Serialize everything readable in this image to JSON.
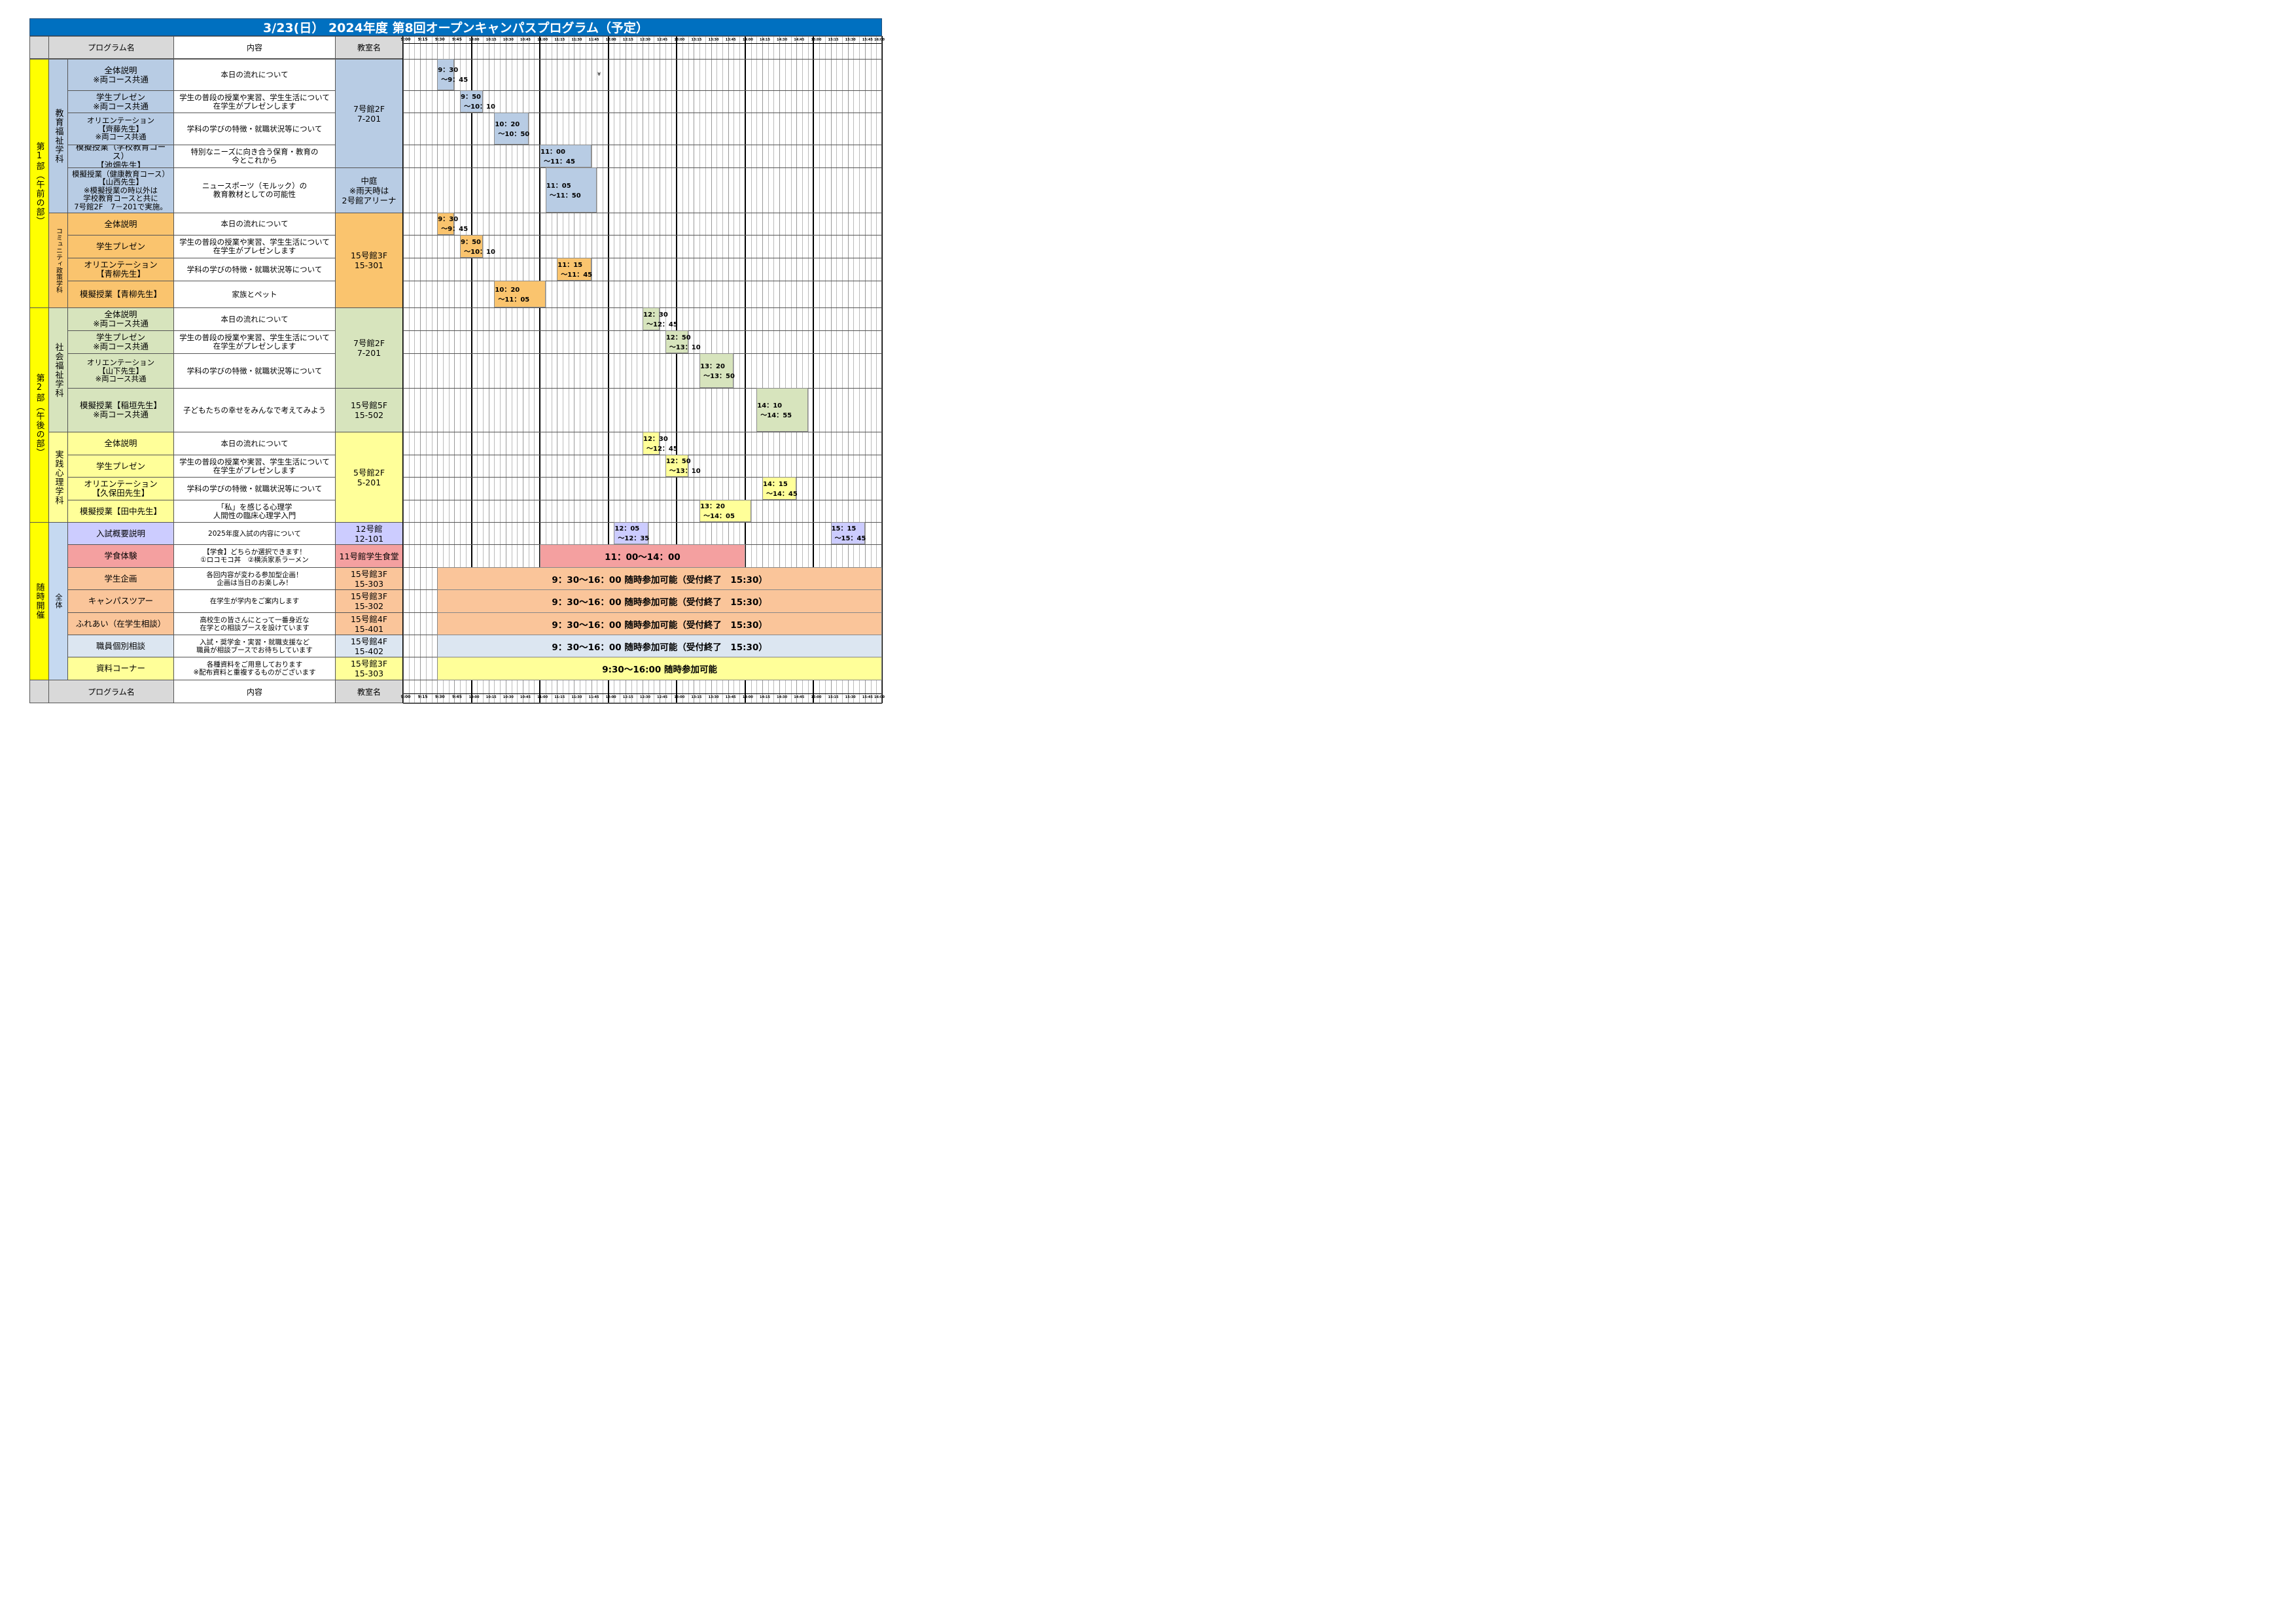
{
  "title": "3/23(日） 2024年度 第8回オープンキャンパスプログラム（予定）",
  "header": {
    "program": "プログラム名",
    "content": "内容",
    "room": "教室名"
  },
  "footer": {
    "program": "プログラム名",
    "content": "内容",
    "room": "教室名"
  },
  "time_ticks": [
    "9:00",
    "9:15",
    "9:30",
    "9:45",
    "10:00",
    "10:15",
    "10:30",
    "10:45",
    "11:00",
    "11:15",
    "11:30",
    "11:45",
    "12:00",
    "12:15",
    "12:30",
    "12:45",
    "13:00",
    "13:15",
    "13:30",
    "13:45",
    "14:00",
    "14:15",
    "14:30",
    "14:45",
    "15:00",
    "15:15",
    "15:30",
    "15:45",
    "16:00"
  ],
  "parts": [
    {
      "label": "第1部（午前の部）",
      "color": "#ffff00"
    },
    {
      "label": "第2部（午後の部）",
      "color": "#ffff00"
    },
    {
      "label": "随時開催",
      "color": "#ffff00"
    }
  ],
  "departments": [
    {
      "label": "教育福祉学科",
      "color": "#b8cce4"
    },
    {
      "label": "コミュニティ政策学科",
      "color": "#fac46e"
    },
    {
      "label": "社会福祉学科",
      "color": "#d7e4bd"
    },
    {
      "label": "実践心理学科",
      "color": "#ffff99"
    },
    {
      "label": "全体",
      "color": "#c5d9f1"
    }
  ],
  "rows": [
    {
      "program": "全体説明\n※両コース共通",
      "content": "本日の流れについて",
      "color": "#b8cce4",
      "block": {
        "start": "9:30",
        "end": "9:45",
        "label1": "9：30",
        "label2": "～9：45"
      }
    },
    {
      "program": "学生プレゼン\n※両コース共通",
      "content": "学生の普段の授業や実習、学生生活について\n在学生がプレゼンします",
      "color": "#b8cce4",
      "block": {
        "start": "9:50",
        "end": "10:10",
        "label1": "9：50",
        "label2": "～10：10"
      }
    },
    {
      "program": "オリエンテーション\n【齊藤先生】\n※両コース共通",
      "content": "学科の学びの特徴・就職状況等について",
      "color": "#b8cce4",
      "block": {
        "start": "10:20",
        "end": "10:50",
        "label1": "10：20",
        "label2": "～10：50"
      }
    },
    {
      "program": "模擬授業（学校教育コース）\n【池畑先生】",
      "content": "特別なニーズに向き合う保育・教育の\n今とこれから",
      "color": "#b8cce4",
      "block": {
        "start": "11:00",
        "end": "11:45",
        "label1": "11：00",
        "label2": "～11：45"
      }
    },
    {
      "program": "模擬授業（健康教育コース）\n【山西先生】\n※模擬授業の時以外は\n学校教育コースと共に\n7号館2F　7－201で実施。",
      "content": "ニュースポーツ（モルック）の\n教育教材としての可能性",
      "color": "#b8cce4",
      "block": {
        "start": "11:05",
        "end": "11:50",
        "label1": "11：05",
        "label2": "～11：50"
      }
    },
    {
      "program": "全体説明",
      "content": "本日の流れについて",
      "color": "#fac46e",
      "block": {
        "start": "9:30",
        "end": "9:45",
        "label1": "9：30",
        "label2": "～9：45"
      }
    },
    {
      "program": "学生プレゼン",
      "content": "学生の普段の授業や実習、学生生活について\n在学生がプレゼンします",
      "color": "#fac46e",
      "block": {
        "start": "9:50",
        "end": "10:10",
        "label1": "9：50",
        "label2": "～10：10"
      }
    },
    {
      "program": "オリエンテーション\n【青柳先生】",
      "content": "学科の学びの特徴・就職状況等について",
      "color": "#fac46e",
      "block": {
        "start": "11:15",
        "end": "11:45",
        "label1": "11：15",
        "label2": "～11：45"
      }
    },
    {
      "program": "模擬授業【青柳先生】",
      "content": "家族とペット",
      "color": "#fac46e",
      "block": {
        "start": "10:20",
        "end": "11:05",
        "label1": "10：20",
        "label2": "～11：05"
      }
    },
    {
      "program": "全体説明\n※両コース共通",
      "content": "本日の流れについて",
      "color": "#d7e4bd",
      "block": {
        "start": "12:30",
        "end": "12:45",
        "label1": "12：30",
        "label2": "～12：45"
      }
    },
    {
      "program": "学生プレゼン\n※両コース共通",
      "content": "学生の普段の授業や実習、学生生活について\n在学生がプレゼンします",
      "color": "#d7e4bd",
      "block": {
        "start": "12:50",
        "end": "13:10",
        "label1": "12：50",
        "label2": "～13：10"
      }
    },
    {
      "program": "オリエンテーション\n【山下先生】\n※両コース共通",
      "content": "学科の学びの特徴・就職状況等について",
      "color": "#d7e4bd",
      "block": {
        "start": "13:20",
        "end": "13:50",
        "label1": "13：20",
        "label2": "～13：50"
      }
    },
    {
      "program": "模擬授業【稲垣先生】\n※両コース共通",
      "content": "子どもたちの幸せをみんなで考えてみよう",
      "color": "#d7e4bd",
      "block": {
        "start": "14:10",
        "end": "14:55",
        "label1": "14：10",
        "label2": "～14：55"
      }
    },
    {
      "program": "全体説明",
      "content": "本日の流れについて",
      "color": "#ffff99",
      "block": {
        "start": "12:30",
        "end": "12:45",
        "label1": "12：30",
        "label2": "～12：45"
      }
    },
    {
      "program": "学生プレゼン",
      "content": "学生の普段の授業や実習、学生生活について\n在学生がプレゼンします",
      "color": "#ffff99",
      "block": {
        "start": "12:50",
        "end": "13:10",
        "label1": "12：50",
        "label2": "～13：10"
      }
    },
    {
      "program": "オリエンテーション\n【久保田先生】",
      "content": "学科の学びの特徴・就職状況等について",
      "color": "#ffff99",
      "block": {
        "start": "14:15",
        "end": "14:45",
        "label1": "14：15",
        "label2": "～14：45"
      }
    },
    {
      "program": "模擬授業【田中先生】",
      "content": "「私」を感じる心理学\n人間性の臨床心理学入門",
      "color": "#ffff99",
      "block": {
        "start": "13:20",
        "end": "14:05",
        "label1": "13：20",
        "label2": "～14：05"
      }
    },
    {
      "program": "入試概要説明",
      "content": "2025年度入試の内容について",
      "color": "#ccccff",
      "room": "12号館\n12-101",
      "room_color": "#ccccff",
      "blocks": [
        {
          "start": "12:05",
          "end": "12:35",
          "label1": "12：05",
          "label2": "～12：35"
        },
        {
          "start": "15:15",
          "end": "15:45",
          "label1": "15：15",
          "label2": "～15：45"
        }
      ]
    },
    {
      "program": "学食体験",
      "content": "【学食】どちらか選択できます！\n①ロコモコ丼　②横浜家系ラーメン",
      "color": "#f4a0a0",
      "room": "11号館学生食堂",
      "room_color": "#f4a0a0",
      "band": {
        "start": "11:00",
        "end": "14:00",
        "text": "11：00～14：00",
        "color": "#f4a0a0"
      }
    },
    {
      "program": "学生企画",
      "content": "各回内容が変わる参加型企画！\n企画は当日のお楽しみ！",
      "color": "#fac59a",
      "room": "15号館3F\n15-303",
      "room_color": "#fac59a",
      "band": {
        "start": "9:30",
        "end": "16:00",
        "text": "9：30～16：00 随時参加可能（受付終了　15:30）",
        "color": "#fac59a"
      }
    },
    {
      "program": "キャンパスツアー",
      "content": "在学生が学内をご案内します",
      "color": "#fac59a",
      "room": "15号館3F\n15-302",
      "room_color": "#fac59a",
      "band": {
        "start": "9:30",
        "end": "16:00",
        "text": "9：30～16：00 随時参加可能（受付終了　15:30）",
        "color": "#fac59a"
      }
    },
    {
      "program": "ふれあい（在学生相談）",
      "content": "高校生の皆さんにとって一番身近な\n在学との相談ブースを設けています",
      "color": "#fac59a",
      "room": "15号館4F\n15-401",
      "room_color": "#fac59a",
      "band": {
        "start": "9:30",
        "end": "16:00",
        "text": "9：30～16：00 随時参加可能（受付終了　15:30）",
        "color": "#fac59a"
      }
    },
    {
      "program": "職員個別相談",
      "content": "入試・奨学金・実習・就職支援など\n職員が相談ブースでお待ちしています",
      "color": "#dce6f1",
      "room": "15号館4F\n15-402",
      "room_color": "#dce6f1",
      "band": {
        "start": "9:30",
        "end": "16:00",
        "text": "9：30～16：00 随時参加可能（受付終了　15:30）",
        "color": "#dce6f1"
      }
    },
    {
      "program": "資料コーナー",
      "content": "各種資料をご用意しております\n※配布資料と重複するものがございます",
      "color": "#ffff99",
      "room": "15号館3F\n15-303",
      "room_color": "#ffff99",
      "band": {
        "start": "9:30",
        "end": "16:00",
        "text": "9:30～16:00 随時参加可能",
        "color": "#ffff99"
      }
    }
  ],
  "merged_rooms": [
    {
      "text": "7号館2F\n7-201",
      "color": "#b8cce4"
    },
    {
      "text": "中庭\n※雨天時は\n2号館アリーナ",
      "color": "#b8cce4"
    },
    {
      "text": "15号館3F\n15-301",
      "color": "#fac46e"
    },
    {
      "text": "7号館2F\n7-201",
      "color": "#d7e4bd"
    },
    {
      "text": "15号館5F\n15-502",
      "color": "#d7e4bd"
    },
    {
      "text": "5号館2F\n5-201",
      "color": "#ffff99"
    }
  ],
  "stray_mark": "¥"
}
